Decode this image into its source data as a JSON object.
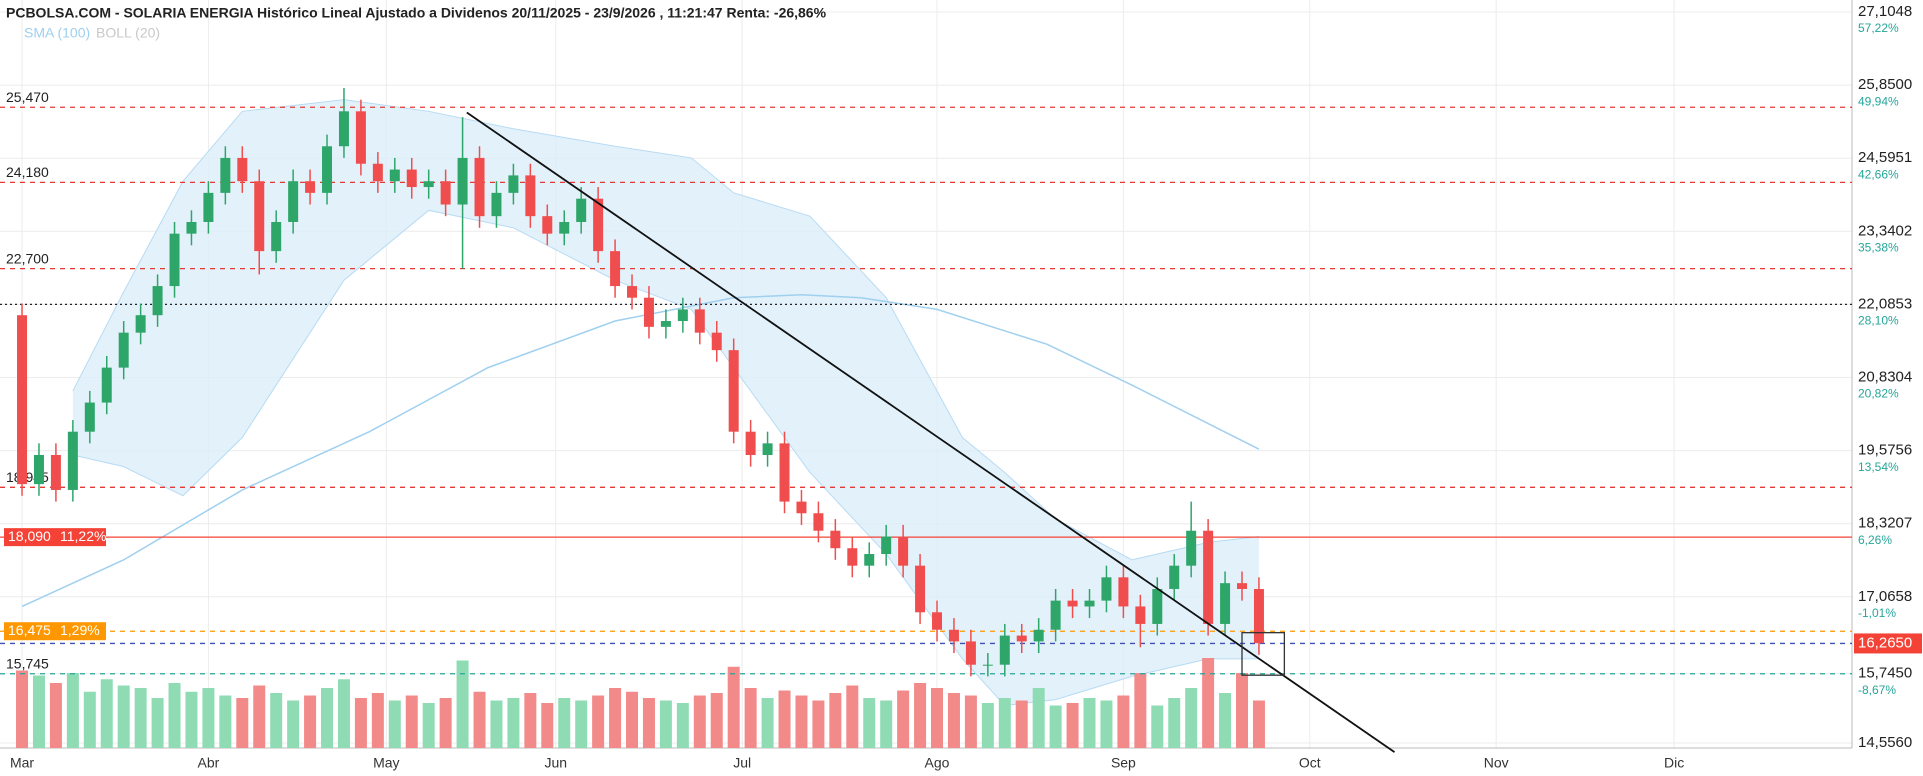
{
  "chart_data": {
    "type": "candlestick",
    "title": "PCBOLSA.COM - SOLARIA ENERGIA Histórico Lineal Ajustado a Dividenos 20/11/2025 - 23/9/2026 , 11:21:47 Renta: -26,86%",
    "xlim": [
      -2.6,
      216
    ],
    "ylim": [
      14.556,
      27.1048
    ],
    "xticks": [
      {
        "value": 0,
        "label": "Mar"
      },
      {
        "value": 22,
        "label": "Abr"
      },
      {
        "value": 43,
        "label": "May"
      },
      {
        "value": 63,
        "label": "Jun"
      },
      {
        "value": 85,
        "label": "Jul"
      },
      {
        "value": 108,
        "label": "Ago"
      },
      {
        "value": 130,
        "label": "Sep"
      },
      {
        "value": 152,
        "label": "Oct"
      },
      {
        "value": 174,
        "label": "Nov"
      },
      {
        "value": 195,
        "label": "Dic"
      }
    ],
    "yticks": [
      {
        "value": 27.1048,
        "label": "27,1048"
      },
      {
        "value": 25.85,
        "label": "25,8500"
      },
      {
        "value": 24.5951,
        "label": "24,5951"
      },
      {
        "value": 23.3402,
        "label": "23,3402"
      },
      {
        "value": 22.0853,
        "label": "22,0853"
      },
      {
        "value": 20.8304,
        "label": "20,8304"
      },
      {
        "value": 19.5756,
        "label": "19,5756"
      },
      {
        "value": 18.3207,
        "label": "18,3207"
      },
      {
        "value": 17.0658,
        "label": "17,0658"
      },
      {
        "value": 15.745,
        "label": "15,7450"
      },
      {
        "value": 14.556,
        "label": "14,5560"
      }
    ],
    "ytick_pcts": [
      "57,22%",
      "49,94%",
      "42,66%",
      "35,38%",
      "28,10%",
      "20,82%",
      "13,54%",
      "6,26%",
      "-1,01%",
      "-8,67%",
      null
    ],
    "grid": true,
    "up_color": "#2ea66a",
    "down_color": "#f04e4e",
    "volume_up_color": "#8fdcb4",
    "volume_down_color": "#f38a8a",
    "x": [
      0,
      2,
      4,
      6,
      8,
      10,
      12,
      14,
      16,
      18,
      20,
      22,
      24,
      26,
      28,
      30,
      32,
      34,
      36,
      38,
      40,
      42,
      44,
      46,
      48,
      50,
      52,
      54,
      56,
      58,
      60,
      62,
      64,
      66,
      68,
      70,
      72,
      74,
      76,
      78,
      80,
      82,
      84,
      86,
      88,
      90,
      92,
      94,
      96,
      98,
      100,
      102,
      104,
      106,
      108,
      110,
      112,
      114,
      116,
      118,
      120,
      122,
      124,
      126,
      128,
      130,
      132,
      134,
      136,
      138,
      140,
      142,
      144,
      146
    ],
    "open": [
      21.9,
      19.0,
      19.5,
      18.9,
      19.9,
      20.4,
      21.0,
      21.6,
      21.9,
      22.4,
      23.3,
      23.5,
      24.0,
      24.6,
      24.2,
      23.0,
      23.5,
      24.2,
      24.0,
      24.8,
      25.4,
      24.5,
      24.2,
      24.4,
      24.1,
      24.2,
      23.8,
      24.6,
      23.6,
      24.0,
      24.3,
      23.6,
      23.3,
      23.5,
      23.9,
      23.0,
      22.4,
      22.2,
      21.7,
      21.8,
      22.0,
      21.6,
      21.3,
      19.9,
      19.5,
      19.7,
      18.7,
      18.5,
      18.2,
      17.9,
      17.6,
      17.8,
      18.1,
      17.6,
      16.8,
      16.5,
      16.3,
      15.9,
      15.9,
      16.4,
      16.3,
      16.5,
      17.0,
      16.9,
      17.0,
      17.4,
      16.9,
      16.6,
      17.2,
      17.6,
      18.2,
      16.6,
      17.3,
      17.2
    ],
    "high": [
      22.1,
      19.7,
      19.7,
      20.1,
      20.6,
      21.2,
      21.8,
      22.1,
      22.6,
      23.5,
      23.7,
      24.2,
      24.8,
      24.8,
      24.4,
      23.7,
      24.4,
      24.4,
      25.0,
      25.8,
      25.6,
      24.7,
      24.6,
      24.6,
      24.4,
      24.4,
      25.3,
      24.8,
      24.2,
      24.5,
      24.5,
      23.8,
      23.7,
      24.1,
      24.1,
      23.2,
      22.6,
      22.4,
      22.0,
      22.2,
      22.2,
      21.8,
      21.5,
      20.1,
      19.9,
      19.9,
      18.9,
      18.7,
      18.4,
      18.1,
      18.0,
      18.3,
      18.3,
      17.8,
      17.0,
      16.7,
      16.5,
      16.1,
      16.6,
      16.6,
      16.7,
      17.2,
      17.2,
      17.2,
      17.6,
      17.6,
      17.1,
      17.4,
      17.8,
      18.7,
      18.4,
      17.5,
      17.5,
      17.4
    ],
    "low": [
      18.8,
      18.8,
      18.7,
      18.7,
      19.7,
      20.2,
      20.8,
      21.4,
      21.7,
      22.2,
      23.1,
      23.3,
      23.8,
      24.0,
      22.6,
      22.8,
      23.3,
      23.8,
      23.8,
      24.6,
      24.3,
      24.0,
      24.0,
      23.9,
      23.9,
      23.6,
      22.7,
      23.4,
      23.4,
      23.8,
      23.4,
      23.1,
      23.1,
      23.3,
      22.8,
      22.2,
      22.0,
      21.5,
      21.5,
      21.6,
      21.4,
      21.1,
      19.7,
      19.3,
      19.3,
      18.5,
      18.3,
      18.0,
      17.7,
      17.4,
      17.4,
      17.6,
      17.4,
      16.6,
      16.3,
      16.1,
      15.7,
      15.7,
      15.7,
      16.1,
      16.1,
      16.3,
      16.7,
      16.7,
      16.8,
      16.7,
      16.2,
      16.4,
      17.0,
      17.4,
      16.4,
      16.4,
      17.0,
      16.07
    ],
    "close": [
      19.0,
      19.5,
      18.9,
      19.9,
      20.4,
      21.0,
      21.6,
      21.9,
      22.4,
      23.3,
      23.5,
      24.0,
      24.6,
      24.2,
      23.0,
      23.5,
      24.2,
      24.0,
      24.8,
      25.4,
      24.5,
      24.2,
      24.4,
      24.1,
      24.2,
      23.8,
      24.6,
      23.6,
      24.0,
      24.3,
      23.6,
      23.3,
      23.5,
      23.9,
      23.0,
      22.4,
      22.2,
      21.7,
      21.8,
      22.0,
      21.6,
      21.3,
      19.9,
      19.5,
      19.7,
      18.7,
      18.5,
      18.2,
      17.9,
      17.6,
      17.8,
      18.1,
      17.6,
      16.8,
      16.5,
      16.3,
      15.9,
      15.9,
      16.4,
      16.3,
      16.5,
      17.0,
      16.9,
      17.0,
      17.4,
      16.9,
      16.6,
      17.2,
      17.6,
      18.2,
      16.6,
      17.3,
      17.2,
      16.27
    ],
    "volume": [
      62,
      58,
      52,
      60,
      45,
      55,
      50,
      48,
      40,
      52,
      45,
      48,
      42,
      40,
      50,
      44,
      38,
      42,
      48,
      55,
      40,
      44,
      38,
      42,
      36,
      40,
      70,
      45,
      38,
      40,
      44,
      36,
      40,
      38,
      42,
      48,
      45,
      40,
      38,
      36,
      42,
      44,
      65,
      48,
      40,
      46,
      42,
      38,
      44,
      50,
      40,
      38,
      46,
      52,
      48,
      44,
      42,
      36,
      40,
      38,
      48,
      34,
      36,
      40,
      38,
      42,
      60,
      34,
      40,
      48,
      72,
      44,
      60,
      38
    ],
    "sma": {
      "name": "SMA (100)",
      "color": "#9fd0ef",
      "x": [
        0,
        12,
        26,
        41,
        55,
        70,
        84,
        92,
        99,
        108,
        121,
        131,
        146
      ],
      "values": [
        16.9,
        17.7,
        18.9,
        19.9,
        21.0,
        21.8,
        22.2,
        22.25,
        22.2,
        22.0,
        21.4,
        20.7,
        19.6
      ]
    },
    "boll": {
      "name": "BOLL (20)",
      "color": "#dcedfa",
      "line_color": "#b7dbf3",
      "x": [
        6,
        12,
        19,
        26,
        38,
        48,
        58,
        70,
        79,
        84,
        93,
        102,
        111,
        116,
        122,
        131,
        140,
        146
      ],
      "upper": [
        20.6,
        22.3,
        24.2,
        25.4,
        25.6,
        25.4,
        25.1,
        24.8,
        24.6,
        24.0,
        23.6,
        22.2,
        19.8,
        19.2,
        18.4,
        17.7,
        18.0,
        18.1
      ],
      "lower": [
        19.5,
        19.3,
        18.8,
        19.8,
        22.5,
        23.7,
        23.4,
        22.5,
        22.0,
        21.0,
        19.2,
        17.8,
        16.0,
        15.2,
        15.3,
        15.7,
        16.0,
        16.0
      ]
    },
    "levels": [
      {
        "value": 25.47,
        "label": "25,470",
        "color": "#e53935",
        "style": "dashed"
      },
      {
        "value": 24.18,
        "label": "24,180",
        "color": "#e53935",
        "style": "dashed"
      },
      {
        "value": 22.7,
        "label": "22,700",
        "color": "#e53935",
        "style": "dashed"
      },
      {
        "value": 18.945,
        "label": "18,945",
        "color": "#e53935",
        "style": "dashed"
      },
      {
        "value": 15.745,
        "label": "15,745",
        "color": "#26a69a",
        "style": "dashed"
      },
      {
        "value": 18.09,
        "label": "18,090",
        "pct": "11,22%",
        "color": "#f44336",
        "style": "solid",
        "boxed": true
      },
      {
        "value": 16.475,
        "label": "16,475",
        "pct": "1,29%",
        "color": "#ff9800",
        "style": "dashed",
        "boxed": true
      },
      {
        "value": 22.0853,
        "color": "#222222",
        "style": "dotted"
      },
      {
        "value": 16.265,
        "color": "#3f51b5",
        "style": "dashed"
      }
    ],
    "last": {
      "value": 16.265,
      "label": "16,2650",
      "color": "#f44336"
    },
    "trendline": {
      "x": [
        52.5,
        162
      ],
      "y": [
        25.38,
        14.4
      ],
      "color": "#111111"
    },
    "box": {
      "x": [
        144,
        149
      ],
      "y": [
        16.45,
        15.72
      ],
      "color": "#333333"
    }
  }
}
